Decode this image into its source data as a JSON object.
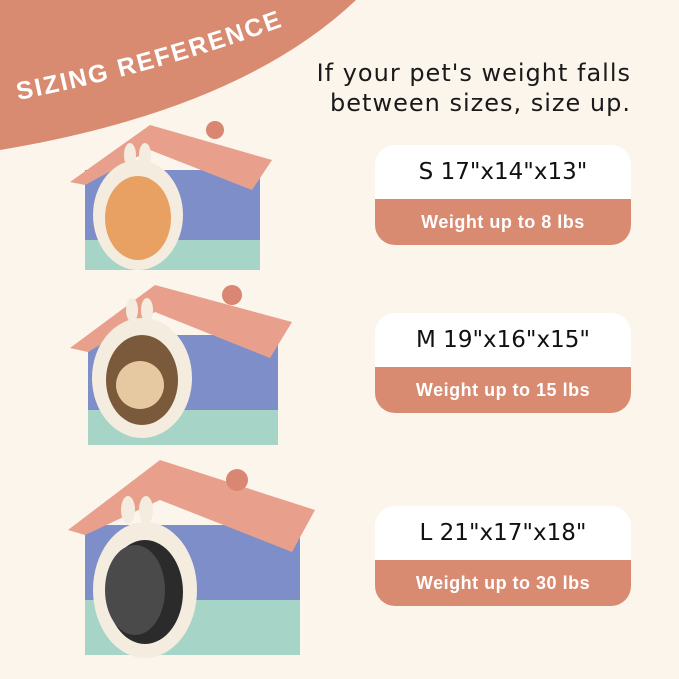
{
  "banner": {
    "title": "SIZING REFERENCE"
  },
  "tip": {
    "line1": "If your pet's weight falls",
    "line2": "between sizes, size up."
  },
  "sizes": [
    {
      "dims": "S 17\"x14\"x13\"",
      "weight": "Weight up to 8 lbs"
    },
    {
      "dims": "M 19\"x16\"x15\"",
      "weight": "Weight up to 15 lbs"
    },
    {
      "dims": "L 21\"x17\"x18\"",
      "weight": "Weight up to 30 lbs"
    }
  ],
  "colors": {
    "background": "#fbf5ec",
    "accent": "#d98b72",
    "roof": "#e8a08c"
  }
}
